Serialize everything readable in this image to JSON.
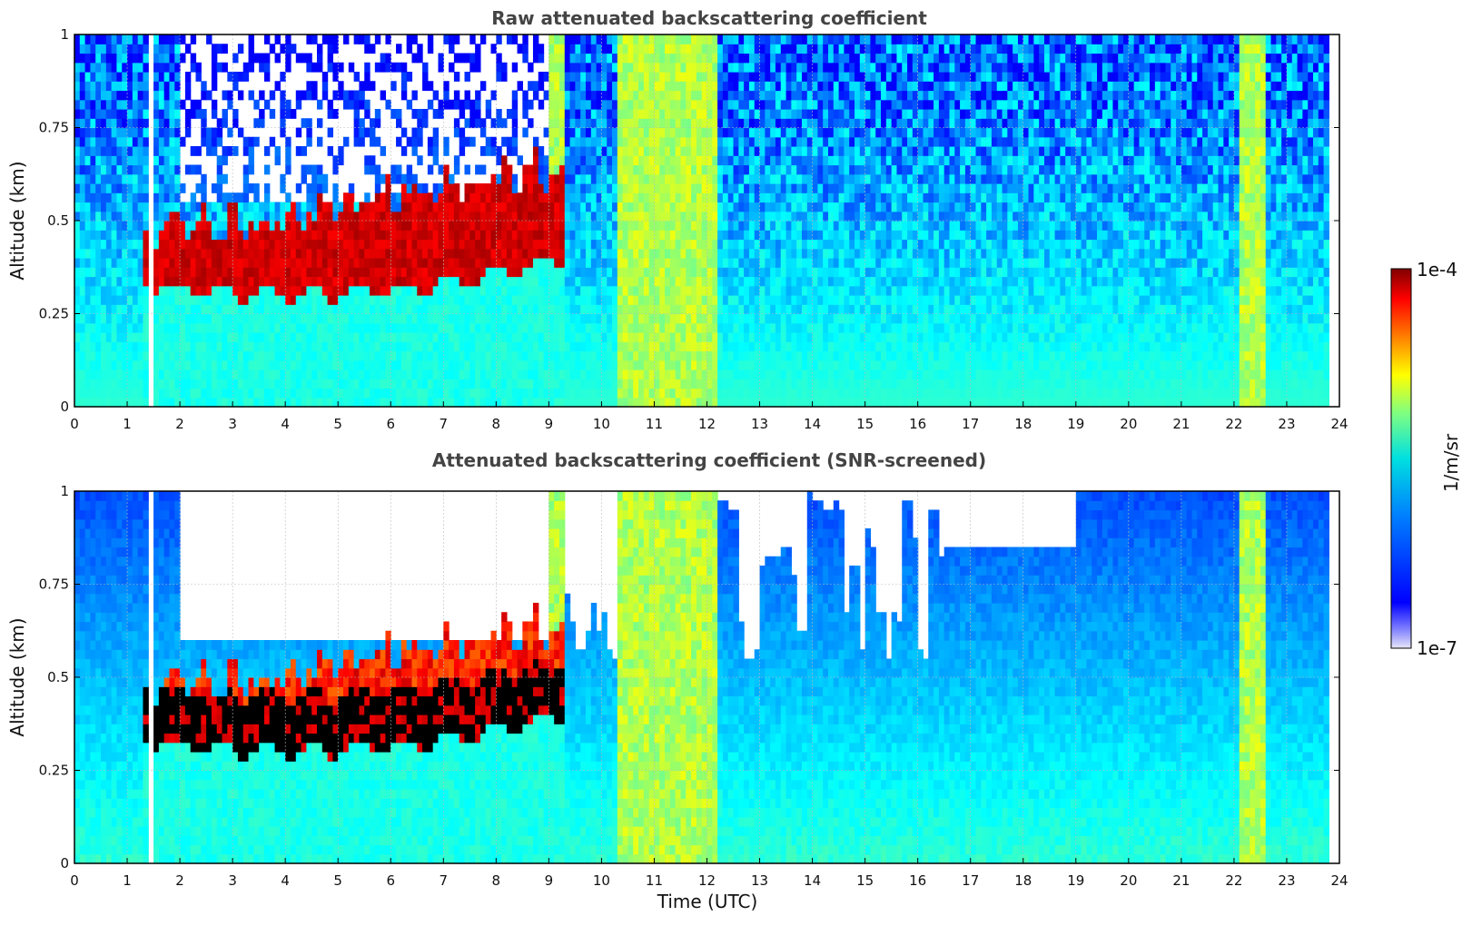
{
  "chart_data": [
    {
      "type": "heatmap",
      "title": "Raw attenuated backscattering coefficient",
      "xlabel": "",
      "ylabel": "Altitude (km)",
      "xlim": [
        0,
        24
      ],
      "ylim": [
        0,
        1
      ],
      "xticks": [
        "0",
        "1",
        "2",
        "3",
        "4",
        "5",
        "6",
        "7",
        "8",
        "9",
        "10",
        "11",
        "12",
        "13",
        "14",
        "15",
        "16",
        "17",
        "18",
        "19",
        "20",
        "21",
        "22",
        "23",
        "24"
      ],
      "yticks": [
        "0",
        "0.25",
        "0.5",
        "0.75",
        "1"
      ],
      "grid": true,
      "colormap": "jet",
      "color_scale": "log",
      "data_end_time": 23.8,
      "gap_time": 1.45,
      "features": [
        {
          "name": "cloud",
          "t_start": 1.3,
          "t_end": 9.3,
          "base_km": 0.27,
          "top_km": 0.72,
          "intensity": "max"
        },
        {
          "name": "high-signal bands",
          "t_ranges": [
            [
              9.0,
              9.3
            ],
            [
              10.3,
              12.2
            ],
            [
              22.1,
              22.6
            ]
          ],
          "level": "green-yellow"
        },
        {
          "name": "clear sky above cloud",
          "t_start": 2.0,
          "t_end": 9.0,
          "min_altitude_km": 0.55
        }
      ]
    },
    {
      "type": "heatmap",
      "title": "Attenuated backscattering coefficient (SNR-screened)",
      "xlabel": "Time (UTC)",
      "ylabel": "Altitude (km)",
      "xlim": [
        0,
        24
      ],
      "ylim": [
        0,
        1
      ],
      "xticks": [
        "0",
        "1",
        "2",
        "3",
        "4",
        "5",
        "6",
        "7",
        "8",
        "9",
        "10",
        "11",
        "12",
        "13",
        "14",
        "15",
        "16",
        "17",
        "18",
        "19",
        "20",
        "21",
        "22",
        "23",
        "24"
      ],
      "yticks": [
        "0",
        "0.25",
        "0.5",
        "0.75",
        "1"
      ],
      "grid": true,
      "colormap": "jet",
      "color_scale": "log",
      "data_end_time": 23.8,
      "gap_time": 1.45,
      "features": [
        {
          "name": "cloud (saturated/black)",
          "t_start": 1.3,
          "t_end": 9.3,
          "base_km": 0.27,
          "top_km": 0.75
        },
        {
          "name": "screened-out regions",
          "t_ranges": [
            [
              2.0,
              9.0
            ],
            [
              9.3,
              10.3
            ],
            [
              12.2,
              19.0
            ]
          ],
          "level": "none"
        }
      ]
    }
  ],
  "colorbar": {
    "max_label": "1e-4",
    "min_label": "1e-7",
    "label": "1/m/sr"
  },
  "colors": {
    "background": "#ffffff",
    "title": "#444444"
  }
}
